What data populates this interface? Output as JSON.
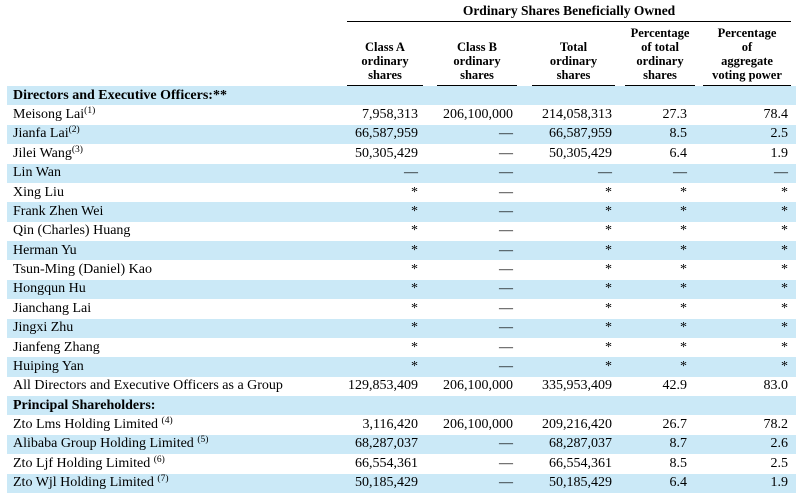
{
  "colors": {
    "highlight": "#cbe9f7",
    "rule": "#000000",
    "text": "#000000"
  },
  "table": {
    "title": "Ordinary Shares Beneficially Owned",
    "columns": [
      {
        "id": "class-a",
        "lines": [
          "Class A",
          "ordinary",
          "shares"
        ]
      },
      {
        "id": "class-b",
        "lines": [
          "Class B",
          "ordinary",
          "shares"
        ]
      },
      {
        "id": "total",
        "lines": [
          "Total",
          "ordinary",
          "shares"
        ]
      },
      {
        "id": "pct-total",
        "lines": [
          "Percentage",
          "of total",
          "ordinary",
          "shares"
        ]
      },
      {
        "id": "pct-voting",
        "lines": [
          "Percentage",
          "of",
          "aggregate",
          "voting power"
        ]
      }
    ],
    "rows": [
      {
        "type": "section",
        "label": "Directors and Executive Officers:**",
        "highlight": true
      },
      {
        "type": "data",
        "name": "Meisong Lai",
        "sup": "(1)",
        "sup_gap": false,
        "highlight": false,
        "values": [
          "7,958,313",
          "206,100,000",
          "214,058,313",
          "27.3",
          "78.4"
        ]
      },
      {
        "type": "data",
        "name": "Jianfa Lai",
        "sup": "(2)",
        "sup_gap": false,
        "highlight": true,
        "values": [
          "66,587,959",
          "—",
          "66,587,959",
          "8.5",
          "2.5"
        ]
      },
      {
        "type": "data",
        "name": "Jilei Wang",
        "sup": "(3)",
        "sup_gap": false,
        "highlight": false,
        "values": [
          "50,305,429",
          "—",
          "50,305,429",
          "6.4",
          "1.9"
        ]
      },
      {
        "type": "data",
        "name": "Lin Wan",
        "sup": "",
        "sup_gap": false,
        "highlight": true,
        "values": [
          "—",
          "—",
          "—",
          "—",
          "—"
        ]
      },
      {
        "type": "data",
        "name": "Xing Liu",
        "sup": "",
        "sup_gap": false,
        "highlight": false,
        "values": [
          "*",
          "—",
          "*",
          "*",
          "*"
        ]
      },
      {
        "type": "data",
        "name": "Frank Zhen Wei",
        "sup": "",
        "sup_gap": false,
        "highlight": true,
        "values": [
          "*",
          "—",
          "*",
          "*",
          "*"
        ]
      },
      {
        "type": "data",
        "name": "Qin (Charles) Huang",
        "sup": "",
        "sup_gap": false,
        "highlight": false,
        "values": [
          "*",
          "—",
          "*",
          "*",
          "*"
        ]
      },
      {
        "type": "data",
        "name": "Herman Yu",
        "sup": "",
        "sup_gap": false,
        "highlight": true,
        "values": [
          "*",
          "—",
          "*",
          "*",
          "*"
        ]
      },
      {
        "type": "data",
        "name": "Tsun-Ming (Daniel) Kao",
        "sup": "",
        "sup_gap": false,
        "highlight": false,
        "values": [
          "*",
          "—",
          "*",
          "*",
          "*"
        ]
      },
      {
        "type": "data",
        "name": "Hongqun Hu",
        "sup": "",
        "sup_gap": false,
        "highlight": true,
        "values": [
          "*",
          "—",
          "*",
          "*",
          "*"
        ]
      },
      {
        "type": "data",
        "name": "Jianchang Lai",
        "sup": "",
        "sup_gap": false,
        "highlight": false,
        "values": [
          "*",
          "—",
          "*",
          "*",
          "*"
        ]
      },
      {
        "type": "data",
        "name": "Jingxi Zhu",
        "sup": "",
        "sup_gap": false,
        "highlight": true,
        "values": [
          "*",
          "—",
          "*",
          "*",
          "*"
        ]
      },
      {
        "type": "data",
        "name": "Jianfeng Zhang",
        "sup": "",
        "sup_gap": false,
        "highlight": false,
        "values": [
          "*",
          "—",
          "*",
          "*",
          "*"
        ]
      },
      {
        "type": "data",
        "name": "Huiping Yan",
        "sup": "",
        "sup_gap": false,
        "highlight": true,
        "values": [
          "*",
          "—",
          "*",
          "*",
          "*"
        ]
      },
      {
        "type": "data",
        "name": "All Directors and Executive Officers as a Group",
        "sup": "",
        "sup_gap": false,
        "highlight": false,
        "values": [
          "129,853,409",
          "206,100,000",
          "335,953,409",
          "42.9",
          "83.0"
        ]
      },
      {
        "type": "section",
        "label": "Principal Shareholders:",
        "highlight": true
      },
      {
        "type": "data",
        "name": "Zto Lms Holding Limited",
        "sup": "(4)",
        "sup_gap": true,
        "highlight": false,
        "values": [
          "3,116,420",
          "206,100,000",
          "209,216,420",
          "26.7",
          "78.2"
        ]
      },
      {
        "type": "data",
        "name": "Alibaba Group Holding Limited",
        "sup": "(5)",
        "sup_gap": true,
        "highlight": true,
        "values": [
          "68,287,037",
          "—",
          "68,287,037",
          "8.7",
          "2.6"
        ]
      },
      {
        "type": "data",
        "name": "Zto Ljf Holding Limited",
        "sup": "(6)",
        "sup_gap": true,
        "highlight": false,
        "values": [
          "66,554,361",
          "—",
          "66,554,361",
          "8.5",
          "2.5"
        ]
      },
      {
        "type": "data",
        "name": "Zto Wjl Holding Limited",
        "sup": "(7)",
        "sup_gap": true,
        "highlight": true,
        "values": [
          "50,185,429",
          "—",
          "50,185,429",
          "6.4",
          "1.9"
        ]
      }
    ]
  }
}
